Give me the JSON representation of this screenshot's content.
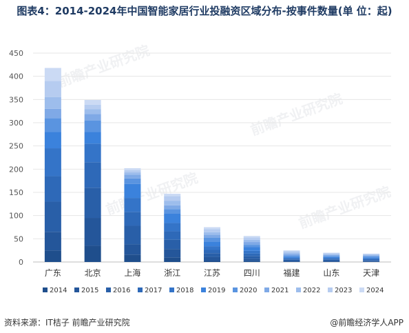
{
  "title": "图表4：2014-2024年中国智能家居行业投融资区域分布-按事件数量(单 位：起)",
  "source": "资料来源：IT桔子 前瞻产业研究院",
  "brand": "@前瞻经济学人APP",
  "watermark": "前瞻产业研究院",
  "chart_data": {
    "type": "bar",
    "stacked": true,
    "categories": [
      "广东",
      "北京",
      "上海",
      "浙江",
      "江苏",
      "四川",
      "福建",
      "山东",
      "天津"
    ],
    "ylim": [
      0,
      450
    ],
    "yticks": [
      0,
      50,
      100,
      150,
      200,
      250,
      300,
      350,
      400,
      450
    ],
    "grid": true,
    "legend_position": "bottom",
    "series": [
      {
        "name": "2014",
        "color": "#1f4e8c",
        "values": [
          25,
          35,
          16,
          10,
          3,
          2,
          1,
          1,
          1
        ]
      },
      {
        "name": "2015",
        "color": "#24569a",
        "values": [
          40,
          60,
          22,
          18,
          8,
          5,
          2,
          2,
          1
        ]
      },
      {
        "name": "2016",
        "color": "#295fa8",
        "values": [
          65,
          65,
          40,
          20,
          8,
          6,
          2,
          2,
          2
        ]
      },
      {
        "name": "2017",
        "color": "#2e69b8",
        "values": [
          55,
          55,
          30,
          18,
          7,
          5,
          2,
          2,
          2
        ]
      },
      {
        "name": "2018",
        "color": "#3474c8",
        "values": [
          60,
          40,
          30,
          18,
          8,
          6,
          2,
          2,
          2
        ]
      },
      {
        "name": "2019",
        "color": "#3b82dc",
        "values": [
          35,
          25,
          30,
          20,
          10,
          8,
          2,
          2,
          2
        ]
      },
      {
        "name": "2020",
        "color": "#5a94e0",
        "values": [
          30,
          25,
          12,
          10,
          8,
          5,
          3,
          2,
          2
        ]
      },
      {
        "name": "2021",
        "color": "#7fa9e6",
        "values": [
          20,
          14,
          8,
          8,
          7,
          6,
          3,
          2,
          2
        ]
      },
      {
        "name": "2022",
        "color": "#9dbdec",
        "values": [
          25,
          10,
          5,
          10,
          5,
          5,
          3,
          2,
          2
        ]
      },
      {
        "name": "2023",
        "color": "#b6ccf0",
        "values": [
          35,
          10,
          5,
          10,
          7,
          5,
          3,
          2,
          1
        ]
      },
      {
        "name": "2024",
        "color": "#cbdaf4",
        "values": [
          28,
          10,
          4,
          5,
          4,
          3,
          2,
          1,
          1
        ]
      }
    ]
  }
}
